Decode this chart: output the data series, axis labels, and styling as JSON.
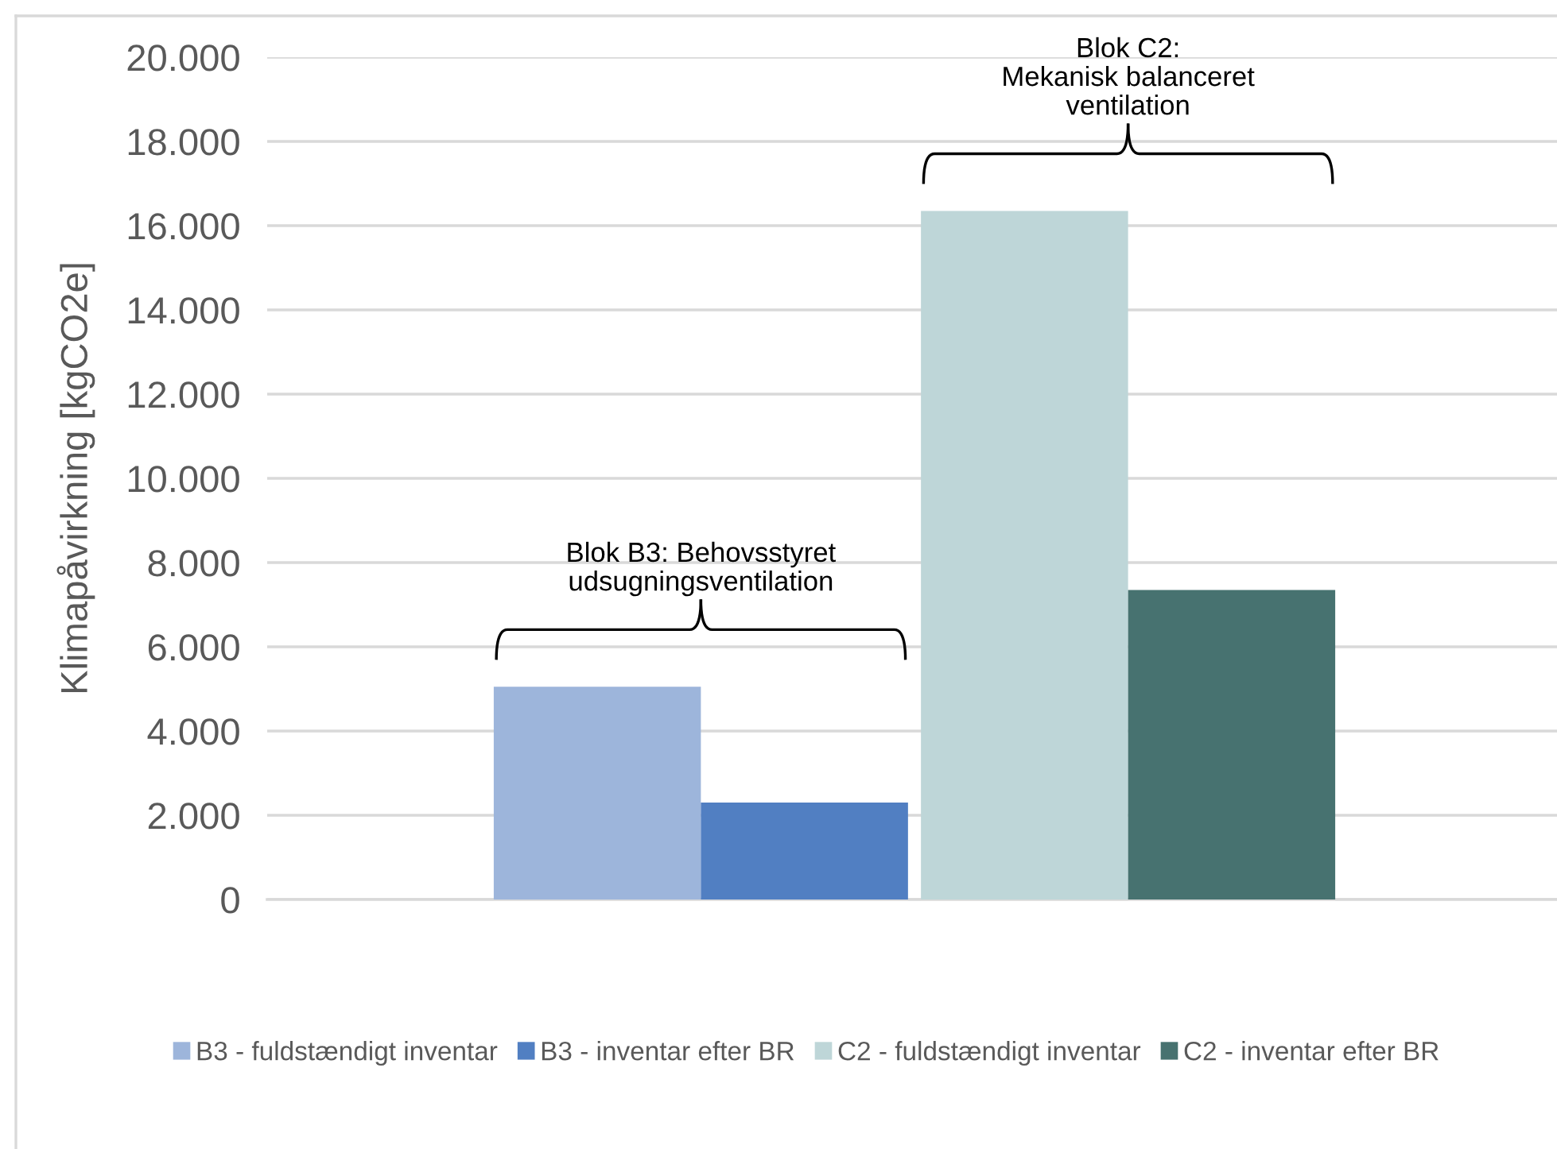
{
  "chart_data": {
    "type": "bar",
    "ylabel": "Klimapåvirkning [kgCO2e]",
    "categories": [
      null
    ],
    "series": [
      {
        "name": "B3 - fuldstændigt inventar",
        "color": "#9db5db",
        "values": [
          5050
        ]
      },
      {
        "name": "B3 - inventar efter BR",
        "color": "#517fc2",
        "values": [
          2300
        ]
      },
      {
        "name": "C2 - fuldstændigt inventar",
        "color": "#bed6d8",
        "values": [
          16350
        ]
      },
      {
        "name": "C2 - inventar efter BR",
        "color": "#477270",
        "values": [
          7350
        ]
      }
    ],
    "ylim": [
      0,
      20000
    ],
    "yticks": [
      0,
      {
        "value": 2000,
        "label": "2.000"
      },
      {
        "value": 4000,
        "label": "4.000"
      },
      {
        "value": 6000,
        "label": "6.000"
      },
      {
        "value": 8000,
        "label": "8.000"
      },
      {
        "value": 10000,
        "label": "10.000"
      },
      {
        "value": 12000,
        "label": "12.000"
      },
      {
        "value": 14000,
        "label": "14.000"
      },
      {
        "value": 16000,
        "label": "16.000"
      },
      {
        "value": 18000,
        "label": "18.000"
      },
      {
        "value": 20000,
        "label": "20.000"
      }
    ],
    "grid": "y",
    "legend": "bottom",
    "tick_labels": "y",
    "annotations": [
      "Blok B3: Behovsstyret\nudsugningsventilation",
      "Blok C2:\nMekanisk balanceret\nventilation"
    ]
  }
}
